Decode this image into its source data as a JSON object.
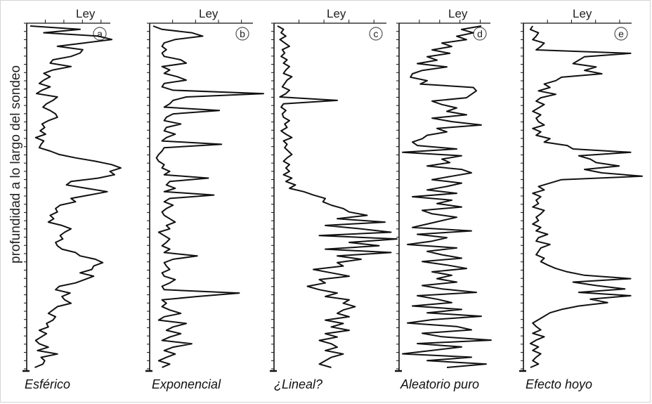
{
  "y_axis_label": "profundidad a lo largo del sondeo",
  "chart_data": [
    {
      "type": "line",
      "panel_letter": "a",
      "xlabel": "Ley",
      "caption": "Esférico",
      "values": [
        0,
        55,
        15,
        75,
        90,
        60,
        30,
        58,
        55,
        45,
        25,
        22,
        45,
        25,
        15,
        22,
        15,
        10,
        22,
        13,
        7,
        30,
        25,
        18,
        14,
        22,
        28,
        30,
        20,
        13,
        16,
        11,
        17,
        6,
        15,
        12,
        10,
        22,
        32,
        50,
        72,
        90,
        100,
        88,
        93,
        75,
        45,
        40,
        62,
        85,
        65,
        45,
        50,
        33,
        28,
        30,
        22,
        26,
        20,
        35,
        45,
        38,
        33,
        36,
        28,
        30,
        35,
        50,
        55,
        72,
        80,
        70,
        68,
        55,
        70,
        60,
        50,
        32,
        28,
        44,
        35,
        38,
        45,
        30,
        25,
        20,
        28,
        25,
        18,
        20,
        10,
        18,
        12,
        6,
        10,
        20,
        8,
        30,
        12,
        16,
        14,
        5
      ]
    },
    {
      "type": "line",
      "panel_letter": "b",
      "xlabel": "Ley",
      "caption": "Exponencial",
      "values": [
        0,
        8,
        35,
        45,
        20,
        10,
        8,
        12,
        8,
        10,
        25,
        30,
        8,
        15,
        10,
        22,
        30,
        10,
        8,
        18,
        100,
        30,
        18,
        15,
        10,
        60,
        18,
        12,
        10,
        25,
        12,
        10,
        20,
        12,
        8,
        62,
        10,
        8,
        5,
        3,
        5,
        10,
        8,
        15,
        10,
        50,
        15,
        12,
        20,
        10,
        55,
        15,
        10,
        18,
        12,
        8,
        10,
        15,
        20,
        12,
        15,
        5,
        10,
        15,
        12,
        8,
        15,
        10,
        40,
        18,
        10,
        12,
        15,
        8,
        10,
        20,
        15,
        8,
        10,
        78,
        40,
        8,
        12,
        8,
        15,
        25,
        10,
        5,
        30,
        18,
        12,
        25,
        15,
        8,
        35,
        18,
        10,
        20,
        12,
        5,
        15,
        8
      ]
    },
    {
      "type": "line",
      "panel_letter": "c",
      "xlabel": "Ley",
      "caption": "¿Lineal?",
      "values": [
        0,
        5,
        3,
        7,
        2,
        6,
        10,
        4,
        6,
        3,
        8,
        5,
        10,
        7,
        5,
        12,
        8,
        6,
        4,
        10,
        7,
        2,
        50,
        5,
        3,
        7,
        4,
        5,
        10,
        6,
        8,
        3,
        7,
        12,
        5,
        8,
        6,
        9,
        12,
        8,
        5,
        10,
        7,
        10,
        5,
        12,
        7,
        15,
        10,
        22,
        30,
        40,
        38,
        45,
        55,
        60,
        75,
        50,
        90,
        40,
        70,
        95,
        35,
        100,
        60,
        85,
        40,
        95,
        50,
        70,
        50,
        55,
        30,
        45,
        60,
        35,
        40,
        25,
        35,
        50,
        40,
        60,
        55,
        65,
        55,
        50,
        60,
        40,
        55,
        45,
        60,
        40,
        50,
        35,
        45,
        50,
        40,
        55,
        45,
        40,
        35,
        45
      ]
    },
    {
      "type": "line",
      "panel_letter": "d",
      "xlabel": "Ley",
      "caption": "Aleatorio puro",
      "values": [
        80,
        60,
        72,
        55,
        65,
        40,
        50,
        30,
        48,
        25,
        35,
        15,
        45,
        20,
        10,
        8,
        25,
        18,
        72,
        75,
        70,
        65,
        30,
        40,
        55,
        45,
        65,
        30,
        50,
        80,
        35,
        45,
        25,
        20,
        10,
        15,
        55,
        0,
        60,
        40,
        48,
        25,
        60,
        70,
        50,
        30,
        60,
        45,
        25,
        55,
        10,
        50,
        35,
        60,
        20,
        30,
        55,
        40,
        25,
        10,
        70,
        15,
        45,
        30,
        5,
        55,
        25,
        40,
        60,
        20,
        45,
        65,
        30,
        50,
        35,
        55,
        20,
        40,
        75,
        15,
        35,
        50,
        10,
        60,
        25,
        80,
        30,
        5,
        55,
        70,
        20,
        40,
        90,
        15,
        60,
        30,
        0,
        70,
        25,
        85,
        45
      ]
    },
    {
      "type": "line",
      "panel_letter": "e",
      "xlabel": "Ley",
      "caption": "Efecto hoyo",
      "values": [
        5,
        3,
        10,
        8,
        5,
        15,
        12,
        8,
        90,
        50,
        45,
        40,
        60,
        50,
        65,
        30,
        25,
        15,
        20,
        10,
        25,
        12,
        8,
        15,
        10,
        5,
        12,
        8,
        10,
        15,
        5,
        12,
        8,
        20,
        15,
        35,
        40,
        90,
        45,
        55,
        60,
        80,
        50,
        65,
        100,
        30,
        20,
        10,
        15,
        5,
        12,
        8,
        10,
        5,
        15,
        12,
        8,
        10,
        5,
        12,
        8,
        18,
        10,
        8,
        20,
        12,
        10,
        8,
        15,
        12,
        18,
        25,
        35,
        50,
        90,
        40,
        60,
        85,
        45,
        90,
        55,
        70,
        45,
        30,
        20,
        15,
        10,
        5,
        8,
        12,
        5,
        15,
        8,
        3,
        10,
        5,
        12,
        8,
        5,
        10,
        3
      ]
    }
  ]
}
